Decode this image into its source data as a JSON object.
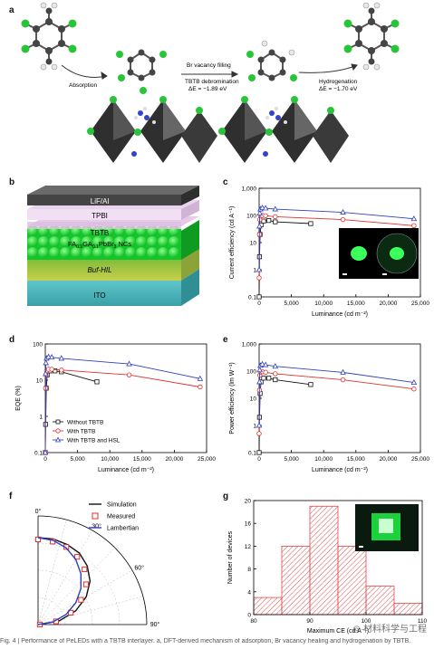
{
  "figure": {
    "panels": {
      "a": "a",
      "b": "b",
      "c": "c",
      "d": "d",
      "e": "e",
      "f": "f",
      "g": "g"
    },
    "panel_a": {
      "step1": "Absorption",
      "step2_title": "Br vacancy filling",
      "step2_sub": "TBTB debromination",
      "step2_energy": "ΔE = −1.89 eV",
      "step3_title": "Hydrogenation",
      "step3_energy": "ΔE = −1.70 eV"
    },
    "panel_b": {
      "layers": [
        "LiF/Al",
        "TPBI",
        "TBTB",
        "FA0.9GA0.1PbBr3 NCs",
        "Buf-HIL",
        "ITO"
      ],
      "perovskite_label": "FA",
      "perovskite_sub1": "0.9",
      "perovskite_mid": "GA",
      "perovskite_sub2": "0.1",
      "perovskite_tail": "PbBr",
      "perovskite_sub3": "3",
      "perovskite_end": " NCs"
    },
    "panel_c": {
      "ylabel": "Current efficiency (cd A⁻¹)",
      "xlabel": "Luminance (cd m⁻²)"
    },
    "panel_d": {
      "ylabel": "EQE (%)",
      "xlabel": "Luminance (cd m⁻²)",
      "legend": [
        "Without TBTB",
        "With TBTB",
        "With TBTB and HSL"
      ]
    },
    "panel_e": {
      "ylabel": "Power efficiency (lm W⁻¹)",
      "xlabel": "Luminance (cd m⁻²)"
    },
    "panel_f": {
      "legend": [
        "Simulation",
        "Measured",
        "Lambertian"
      ],
      "angles": [
        "0°",
        "30°",
        "60°",
        "90°"
      ]
    },
    "panel_g": {
      "ylabel": "Number of devices",
      "xlabel": "Maximum CE (cd A⁻¹)"
    },
    "caption": "Fig. 4 | Performance of PeLEDs with a TBTB interlayer. a, DFT-derived mechanism of adsorption, Br vacancy healing and hydrogenation by TBTB.",
    "watermark": "材料科学与工程"
  },
  "colors": {
    "black": "#111111",
    "red": "#e0302a",
    "blue": "#2f3fbf",
    "green": "#1fe03a",
    "histfill": "#e24a4a"
  },
  "chart_data": [
    {
      "panel": "c",
      "type": "line",
      "log_y": true,
      "xlabel": "Luminance (cd m⁻²)",
      "ylabel": "Current efficiency (cd A⁻¹)",
      "xlim": [
        0,
        25000
      ],
      "ylim": [
        0.1,
        1000
      ],
      "xticks": [
        "0",
        "5,000",
        "10,000",
        "15,000",
        "20,000",
        "25,000"
      ],
      "yticks": [
        "0.1",
        "1",
        "10",
        "100",
        "1,000"
      ],
      "series": [
        {
          "name": "Without TBTB",
          "x": [
            0,
            50,
            150,
            300,
            700,
            1500,
            2500,
            8000
          ],
          "y": [
            0.1,
            3,
            20,
            45,
            62,
            65,
            58,
            50
          ]
        },
        {
          "name": "With TBTB",
          "x": [
            0,
            50,
            100,
            200,
            500,
            1000,
            2500,
            13000,
            24000
          ],
          "y": [
            0.5,
            20,
            70,
            95,
            100,
            98,
            90,
            70,
            42
          ]
        },
        {
          "name": "With TBTB and HSL",
          "x": [
            0,
            50,
            100,
            200,
            500,
            1000,
            2500,
            13000,
            24000
          ],
          "y": [
            1,
            40,
            120,
            170,
            190,
            185,
            170,
            130,
            75
          ]
        }
      ]
    },
    {
      "panel": "d",
      "type": "line",
      "log_y": true,
      "xlabel": "Luminance (cd m⁻²)",
      "ylabel": "EQE (%)",
      "xlim": [
        0,
        25000
      ],
      "ylim": [
        0.1,
        100
      ],
      "xticks": [
        "0",
        "5,000",
        "10,000",
        "15,000",
        "20,000",
        "25,000"
      ],
      "yticks": [
        "0.1",
        "1",
        "10",
        "100"
      ],
      "series": [
        {
          "name": "Without TBTB",
          "x": [
            0,
            50,
            150,
            300,
            700,
            1500,
            2500,
            8000
          ],
          "y": [
            0.1,
            0.6,
            6,
            14,
            18,
            18,
            17,
            9
          ]
        },
        {
          "name": "With TBTB",
          "x": [
            0,
            50,
            100,
            200,
            500,
            1000,
            2500,
            13000,
            24000
          ],
          "y": [
            0.1,
            6,
            14,
            18,
            20,
            20,
            19,
            14,
            6.5
          ]
        },
        {
          "name": "With TBTB and HSL",
          "x": [
            0,
            50,
            100,
            200,
            500,
            1000,
            2500,
            13000,
            24000
          ],
          "y": [
            0.1,
            15,
            30,
            40,
            44,
            43,
            40,
            28,
            11
          ]
        }
      ]
    },
    {
      "panel": "e",
      "type": "line",
      "log_y": true,
      "xlabel": "Luminance (cd m⁻²)",
      "ylabel": "Power efficiency (lm W⁻¹)",
      "xlim": [
        0,
        25000
      ],
      "ylim": [
        0.1,
        1000
      ],
      "xticks": [
        "0",
        "5,000",
        "10,000",
        "15,000",
        "20,000",
        "25,000"
      ],
      "yticks": [
        "0.1",
        "1",
        "10",
        "100",
        "1,000"
      ],
      "series": [
        {
          "name": "Without TBTB",
          "x": [
            0,
            50,
            150,
            300,
            700,
            1500,
            2500,
            8000
          ],
          "y": [
            0.1,
            2,
            15,
            40,
            55,
            55,
            48,
            32
          ]
        },
        {
          "name": "With TBTB",
          "x": [
            0,
            50,
            100,
            200,
            500,
            1000,
            2500,
            13000,
            24000
          ],
          "y": [
            0.5,
            20,
            70,
            90,
            95,
            90,
            80,
            48,
            22
          ]
        },
        {
          "name": "With TBTB and HSL",
          "x": [
            0,
            50,
            100,
            200,
            500,
            1000,
            2500,
            13000,
            24000
          ],
          "y": [
            1,
            40,
            110,
            160,
            180,
            170,
            150,
            90,
            38
          ]
        }
      ]
    },
    {
      "panel": "f",
      "type": "polar",
      "angle_ticks": [
        0,
        30,
        60,
        90
      ],
      "series": [
        {
          "name": "Simulation",
          "type": "line",
          "theta": [
            0,
            10,
            20,
            30,
            40,
            50,
            60,
            70,
            80,
            90
          ],
          "r": [
            1,
            1,
            0.98,
            0.95,
            0.88,
            0.78,
            0.64,
            0.46,
            0.25,
            0.02
          ]
        },
        {
          "name": "Measured",
          "type": "scatter",
          "theta": [
            0,
            10,
            20,
            30,
            40,
            50,
            60,
            70,
            80,
            90
          ],
          "r": [
            0.98,
            0.97,
            0.95,
            0.9,
            0.83,
            0.72,
            0.57,
            0.4,
            0.21,
            0.02
          ]
        },
        {
          "name": "Lambertian",
          "type": "line",
          "theta": [
            0,
            10,
            20,
            30,
            40,
            50,
            60,
            70,
            80,
            90
          ],
          "r": [
            1,
            0.985,
            0.94,
            0.866,
            0.766,
            0.643,
            0.5,
            0.342,
            0.174,
            0
          ]
        }
      ]
    },
    {
      "panel": "g",
      "type": "bar",
      "xlabel": "Maximum CE (cd A⁻¹)",
      "ylabel": "Number of devices",
      "bin_edges": [
        80,
        85,
        90,
        95,
        100,
        105,
        110
      ],
      "values": [
        3,
        12,
        19,
        12,
        5,
        2
      ],
      "xticks": [
        "80",
        "90",
        "100",
        "110"
      ],
      "yticks": [
        "0",
        "4",
        "8",
        "12",
        "16",
        "20"
      ],
      "ylim": [
        0,
        20
      ],
      "xlim": [
        80,
        110
      ]
    }
  ]
}
